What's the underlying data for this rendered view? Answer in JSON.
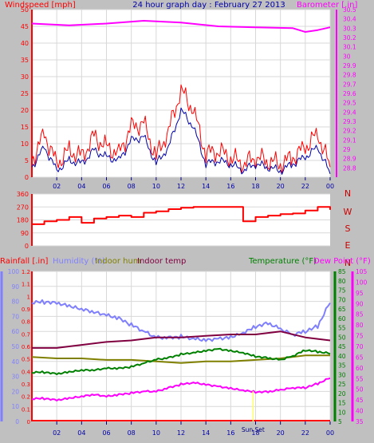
{
  "chart_data": [
    {
      "type": "line",
      "title": "24 hour graph day : February 27 2013",
      "ylabel_left": "Windspeed [mph]",
      "ylabel_right": "Barometer [.in]",
      "ylim_left": [
        0,
        50
      ],
      "ylim_right": [
        28.7,
        30.5
      ],
      "yticks_left": [
        "0",
        "5",
        "10",
        "15",
        "20",
        "25",
        "30",
        "35",
        "40",
        "45",
        "50"
      ],
      "yticks_right": [
        "28.8",
        "28.9",
        "29",
        "29.1",
        "29.2",
        "29.3",
        "29.4",
        "29.5",
        "29.6",
        "29.7",
        "29.8",
        "29.9",
        "30",
        "30.1",
        "30.2",
        "30.3",
        "30.4",
        "30.5"
      ],
      "x_hours": [
        "02",
        "04",
        "06",
        "08",
        "10",
        "12",
        "14",
        "16",
        "18",
        "20",
        "22",
        "00"
      ],
      "colors": {
        "gust": "#ff0000",
        "avg": "#0000aa",
        "baro": "#ff00ff",
        "axis_left": "#ff0000",
        "axis_right": "#ff00ff",
        "title": "#0000aa"
      },
      "series": [
        {
          "name": "gust",
          "x": [
            0,
            1,
            2,
            3,
            4,
            5,
            6,
            7,
            8,
            9,
            10,
            11,
            12,
            13,
            14,
            15,
            16,
            17,
            18,
            19,
            20,
            21,
            22,
            23,
            24
          ],
          "values": [
            5,
            13,
            4,
            8,
            6,
            12,
            9,
            7,
            15,
            16,
            6,
            14,
            26,
            20,
            7,
            8,
            6,
            4,
            6,
            5,
            4,
            6,
            9,
            13,
            3
          ]
        },
        {
          "name": "avg",
          "x": [
            0,
            1,
            2,
            3,
            4,
            5,
            6,
            7,
            8,
            9,
            10,
            11,
            12,
            13,
            14,
            15,
            16,
            17,
            18,
            19,
            20,
            21,
            22,
            23,
            24
          ],
          "values": [
            3,
            9,
            2,
            5,
            4,
            8,
            6,
            5,
            11,
            12,
            4,
            9,
            20,
            15,
            4,
            5,
            4,
            2,
            4,
            3,
            2,
            4,
            6,
            9,
            1
          ]
        },
        {
          "name": "baro",
          "x": [
            0,
            3,
            6,
            9,
            12,
            15,
            18,
            21,
            22,
            23,
            24
          ],
          "values": [
            30.35,
            30.33,
            30.35,
            30.38,
            30.36,
            30.32,
            30.31,
            30.3,
            30.26,
            30.28,
            30.31
          ]
        }
      ]
    },
    {
      "type": "line",
      "ylabel": "",
      "ylim": [
        0,
        360
      ],
      "yticks": [
        "0",
        "90",
        "180",
        "270",
        "360"
      ],
      "compass": [
        "N",
        "W",
        "S",
        "E",
        "N"
      ],
      "colors": {
        "dir": "#ff0000",
        "compass": "#cc0000"
      },
      "series": [
        {
          "name": "wind direction",
          "x": [
            0,
            1,
            2,
            3,
            4,
            5,
            6,
            7,
            8,
            9,
            10,
            11,
            12,
            13,
            14,
            15,
            16,
            17,
            18,
            19,
            20,
            21,
            22,
            23,
            24
          ],
          "values": [
            150,
            170,
            180,
            200,
            160,
            190,
            200,
            210,
            200,
            230,
            240,
            255,
            265,
            270,
            270,
            270,
            270,
            170,
            200,
            210,
            220,
            225,
            245,
            270,
            250
          ]
        }
      ]
    },
    {
      "type": "line",
      "labels": {
        "rain": "Rainfall [.in]",
        "hum": "Humidity (%)",
        "inhum": "Indoor hum",
        "intemp": "Indoor temp",
        "temp": "Temperature (°F)",
        "dew": "Dew Point (°F)"
      },
      "yticks_rain": [
        "0",
        "0.1",
        "0.2",
        "0.3",
        "0.4",
        "0.5",
        "0.6",
        "0.7",
        "0.8",
        "0.9",
        "1",
        "1.1",
        "1.2"
      ],
      "yticks_hum": [
        "0",
        "10",
        "20",
        "30",
        "40",
        "50",
        "60",
        "70",
        "80",
        "90",
        "100"
      ],
      "yticks_temp": [
        "5",
        "10",
        "15",
        "20",
        "25",
        "30",
        "35",
        "40",
        "45",
        "50",
        "55",
        "60",
        "65",
        "70",
        "75",
        "80",
        "85"
      ],
      "yticks_dew": [
        "35",
        "40",
        "45",
        "50",
        "55",
        "60",
        "65",
        "70",
        "75",
        "80",
        "85",
        "90",
        "95",
        "100",
        "105"
      ],
      "x_hours": [
        "02",
        "04",
        "06",
        "08",
        "10",
        "12",
        "14",
        "16",
        "18",
        "20",
        "22",
        "00"
      ],
      "annotation": "Sun Set",
      "colors": {
        "rain": "#ff0000",
        "hum": "#8080ff",
        "inhum": "#808000",
        "intemp": "#800040",
        "temp": "#008000",
        "dew": "#ff00ff",
        "hum_axis": "#8080ff",
        "temp_axis": "#008000",
        "dew_axis": "#ff00ff",
        "rain_axis": "#ff0000"
      },
      "series": [
        {
          "name": "humidity",
          "x": [
            0,
            1,
            2,
            3,
            4,
            5,
            6,
            7,
            8,
            9,
            10,
            11,
            12,
            13,
            14,
            15,
            16,
            17,
            18,
            19,
            20,
            21,
            22,
            23,
            24
          ],
          "values": [
            79,
            79,
            78,
            76,
            74,
            72,
            70,
            68,
            64,
            60,
            56,
            56,
            57,
            56,
            55,
            56,
            57,
            60,
            64,
            66,
            62,
            58,
            60,
            63,
            79
          ]
        },
        {
          "name": "indoor temp",
          "x": [
            0,
            2,
            4,
            6,
            8,
            10,
            12,
            14,
            16,
            18,
            20,
            22,
            24
          ],
          "values": [
            49,
            49,
            51,
            53,
            54,
            56,
            56,
            57,
            58,
            58,
            60,
            56,
            54
          ]
        },
        {
          "name": "indoor hum",
          "x": [
            0,
            2,
            4,
            6,
            8,
            10,
            12,
            14,
            16,
            18,
            20,
            22,
            24
          ],
          "values": [
            43,
            42,
            42,
            41,
            41,
            40,
            39,
            40,
            40,
            41,
            42,
            44,
            44
          ]
        },
        {
          "name": "temperature",
          "x": [
            0,
            1,
            2,
            3,
            4,
            5,
            6,
            7,
            8,
            9,
            10,
            11,
            12,
            13,
            14,
            15,
            16,
            17,
            18,
            19,
            20,
            21,
            22,
            23,
            24
          ],
          "values": [
            31,
            31,
            30,
            31,
            32,
            32,
            33,
            33,
            34,
            36,
            38,
            39,
            41,
            42,
            43,
            44,
            43,
            42,
            40,
            39,
            38,
            40,
            43,
            42,
            41
          ]
        },
        {
          "name": "dew point",
          "x": [
            0,
            1,
            2,
            3,
            4,
            5,
            6,
            7,
            8,
            9,
            10,
            11,
            12,
            13,
            14,
            15,
            16,
            17,
            18,
            19,
            20,
            21,
            22,
            23,
            24
          ],
          "values": [
            17,
            17,
            16,
            17,
            18,
            19,
            18,
            19,
            20,
            21,
            21,
            23,
            25,
            26,
            25,
            24,
            23,
            22,
            21,
            21,
            22,
            23,
            23,
            25,
            28
          ]
        },
        {
          "name": "rainfall",
          "x": [
            0,
            24
          ],
          "values": [
            0,
            0
          ]
        }
      ]
    }
  ]
}
